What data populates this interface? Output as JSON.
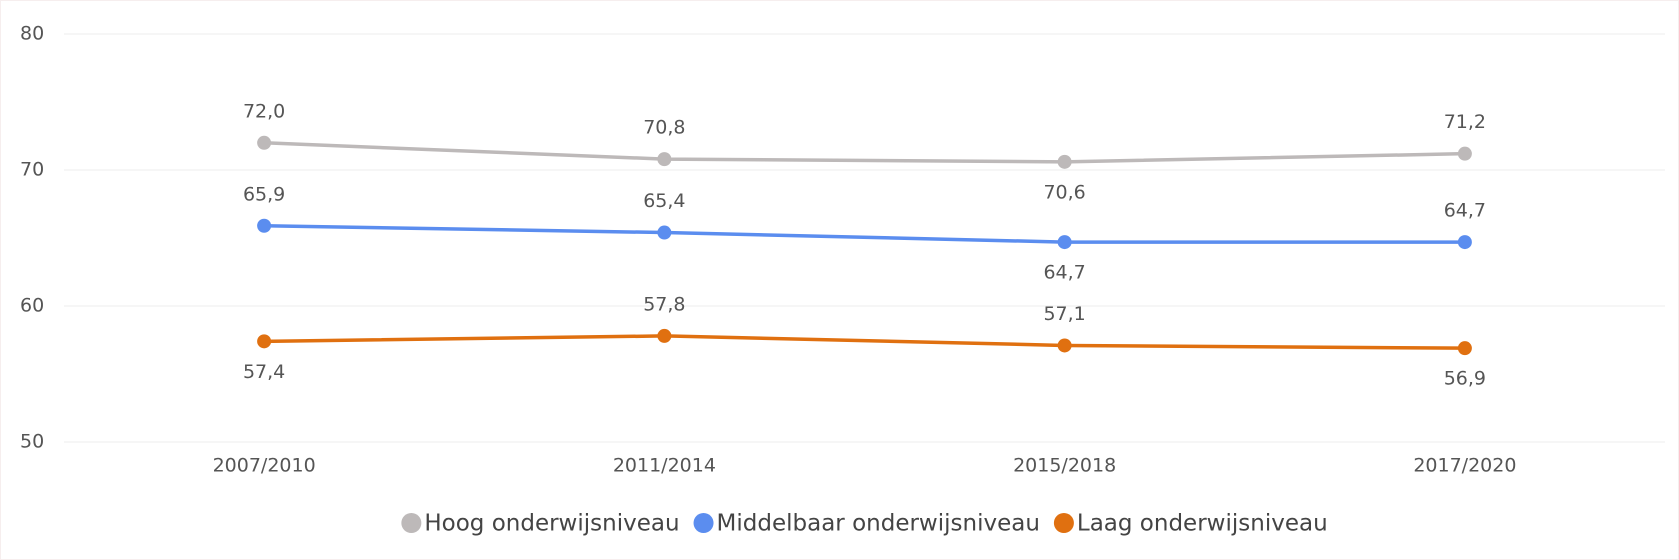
{
  "chart_data": {
    "type": "line",
    "categories": [
      "2007/2010",
      "2011/2014",
      "2015/2018",
      "2017/2020"
    ],
    "series": [
      {
        "name": "Hoog onderwijsniveau",
        "color": "#bdb9b9",
        "values": [
          72.0,
          70.8,
          70.6,
          71.2
        ],
        "value_labels": [
          "72,0",
          "70,8",
          "70,6",
          "71,2"
        ]
      },
      {
        "name": "Middelbaar onderwijsniveau",
        "color": "#5b8def",
        "values": [
          65.9,
          65.4,
          64.7,
          64.7
        ],
        "value_labels": [
          "65,9",
          "65,4",
          "64,7",
          "64,7"
        ]
      },
      {
        "name": "Laag onderwijsniveau",
        "color": "#e07010",
        "values": [
          57.4,
          57.8,
          57.1,
          56.9
        ],
        "value_labels": [
          "57,4",
          "57,8",
          "57,1",
          "56,9"
        ]
      }
    ],
    "ylim": [
      50,
      80
    ],
    "yticks": [
      50,
      60,
      70,
      80
    ],
    "grid": true,
    "legend": "bottom"
  }
}
